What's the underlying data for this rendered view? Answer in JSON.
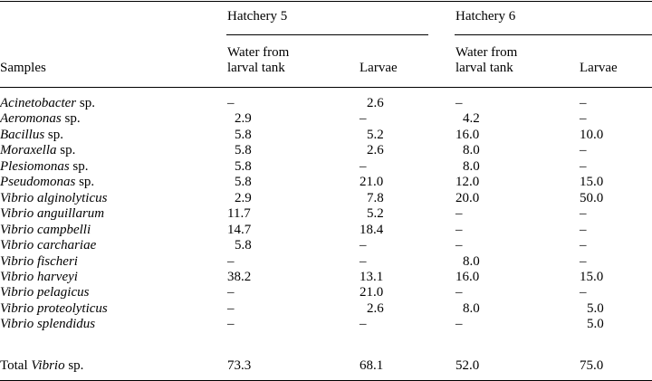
{
  "table": {
    "groups": [
      "Hatchery 5",
      "Hatchery 6"
    ],
    "row_header": "Samples",
    "subheaders": {
      "h5_water_line1": "Water from",
      "h5_water_line2": "larval tank",
      "h5_larvae": "Larvae",
      "h6_water_line1": "Water from",
      "h6_water_line2": "larval tank",
      "h6_larvae": "Larvae"
    },
    "rows": [
      {
        "genus": "Acinetobacter",
        "suffix": " sp.",
        "v": [
          "–",
          "2.6",
          "–",
          "–"
        ]
      },
      {
        "genus": "Aeromonas",
        "suffix": " sp.",
        "v": [
          "2.9",
          "–",
          "4.2",
          "–"
        ]
      },
      {
        "genus": "Bacillus",
        "suffix": " sp.",
        "v": [
          "5.8",
          "5.2",
          "16.0",
          "10.0"
        ]
      },
      {
        "genus": "Moraxella",
        "suffix": " sp.",
        "v": [
          "5.8",
          "2.6",
          "8.0",
          "–"
        ]
      },
      {
        "genus": "Plesiomonas",
        "suffix": " sp.",
        "v": [
          "5.8",
          "–",
          "8.0",
          "–"
        ]
      },
      {
        "genus": "Pseudomonas",
        "suffix": " sp.",
        "v": [
          "5.8",
          "21.0",
          "12.0",
          "15.0"
        ]
      },
      {
        "genus": "Vibrio alginolyticus",
        "suffix": "",
        "v": [
          "2.9",
          "7.8",
          "20.0",
          "50.0"
        ]
      },
      {
        "genus": "Vibrio anguillarum",
        "suffix": "",
        "v": [
          "11.7",
          "5.2",
          "–",
          "–"
        ]
      },
      {
        "genus": "Vibrio campbelli",
        "suffix": "",
        "v": [
          "14.7",
          "18.4",
          "–",
          "–"
        ]
      },
      {
        "genus": "Vibrio carchariae",
        "suffix": "",
        "v": [
          "5.8",
          "–",
          "–",
          "–"
        ]
      },
      {
        "genus": "Vibrio fischeri",
        "suffix": "",
        "v": [
          "–",
          "–",
          "8.0",
          "–"
        ]
      },
      {
        "genus": "Vibrio harveyi",
        "suffix": "",
        "v": [
          "38.2",
          "13.1",
          "16.0",
          "15.0"
        ]
      },
      {
        "genus": "Vibrio pelagicus",
        "suffix": "",
        "v": [
          "–",
          "21.0",
          "–",
          "–"
        ]
      },
      {
        "genus": "Vibrio proteolyticus",
        "suffix": "",
        "v": [
          "–",
          "2.6",
          "8.0",
          "5.0"
        ]
      },
      {
        "genus": "Vibrio splendidus",
        "suffix": "",
        "v": [
          "–",
          "–",
          "–",
          "5.0"
        ]
      }
    ],
    "total": {
      "prefix": "Total ",
      "genus": "Vibrio",
      "suffix": " sp.",
      "v": [
        "73.3",
        "68.1",
        "52.0",
        "75.0"
      ]
    }
  }
}
